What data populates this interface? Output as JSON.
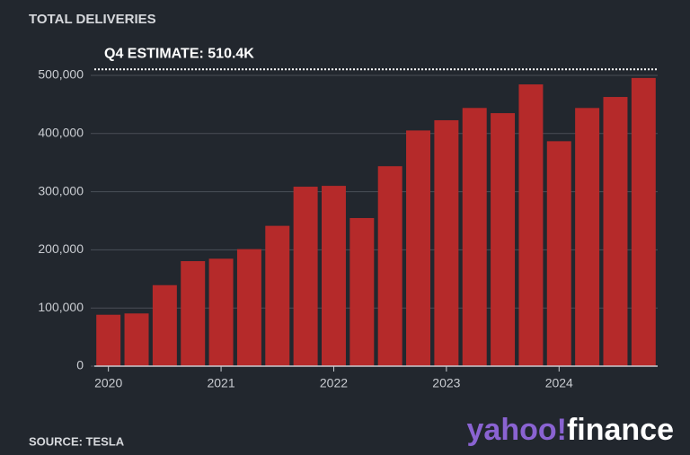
{
  "chart_data": {
    "type": "bar",
    "title": "TOTAL DELIVERIES",
    "categories": [
      "2020",
      null,
      null,
      null,
      "2021",
      null,
      null,
      null,
      "2022",
      null,
      null,
      null,
      "2023",
      null,
      null,
      null,
      "2024",
      null,
      null,
      null
    ],
    "values": [
      88400,
      90650,
      139300,
      180570,
      184800,
      201250,
      241300,
      308600,
      310048,
      254695,
      343830,
      405278,
      422875,
      444000,
      435059,
      484507,
      386810,
      443956,
      462890,
      495570
    ],
    "color": "#b52a2a",
    "ylim": [
      0,
      500000
    ],
    "yticks": [
      0,
      {
        "value": 100000,
        "label": "100,000"
      },
      {
        "value": 200000,
        "label": "200,000"
      },
      {
        "value": 300000,
        "label": "300,000"
      },
      {
        "value": 400000,
        "label": "400,000"
      },
      {
        "value": 500000,
        "label": "500,000"
      }
    ],
    "grid": true,
    "estimate": {
      "value": 510400,
      "label": "Q4 ESTIMATE: 510.4K"
    },
    "source": "SOURCE: TESLA"
  },
  "branding": {
    "brand": "yahoo!",
    "product": "finance"
  }
}
